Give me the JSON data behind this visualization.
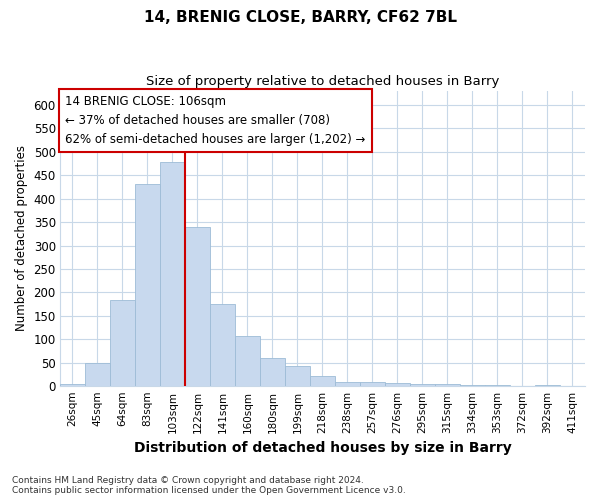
{
  "title": "14, BRENIG CLOSE, BARRY, CF62 7BL",
  "subtitle": "Size of property relative to detached houses in Barry",
  "xlabel": "Distribution of detached houses by size in Barry",
  "ylabel": "Number of detached properties",
  "bar_color": "#c8d9ee",
  "bar_edge_color": "#9dbcd6",
  "background_color": "#ffffff",
  "fig_background": "#ffffff",
  "grid_color": "#c8d8e8",
  "categories": [
    "26sqm",
    "45sqm",
    "64sqm",
    "83sqm",
    "103sqm",
    "122sqm",
    "141sqm",
    "160sqm",
    "180sqm",
    "199sqm",
    "218sqm",
    "238sqm",
    "257sqm",
    "276sqm",
    "295sqm",
    "315sqm",
    "334sqm",
    "353sqm",
    "372sqm",
    "392sqm",
    "411sqm"
  ],
  "values": [
    5,
    50,
    185,
    430,
    478,
    340,
    175,
    107,
    60,
    43,
    22,
    10,
    10,
    8,
    5,
    4,
    3,
    2,
    1,
    3,
    1
  ],
  "ylim": [
    0,
    630
  ],
  "yticks": [
    0,
    50,
    100,
    150,
    200,
    250,
    300,
    350,
    400,
    450,
    500,
    550,
    600
  ],
  "marker_bar_index": 4,
  "annotation_line1": "14 BRENIG CLOSE: 106sqm",
  "annotation_line2": "← 37% of detached houses are smaller (708)",
  "annotation_line3": "62% of semi-detached houses are larger (1,202) →",
  "annotation_box_color": "#ffffff",
  "annotation_box_edge": "#cc0000",
  "marker_line_color": "#cc0000",
  "footnote": "Contains HM Land Registry data © Crown copyright and database right 2024.\nContains public sector information licensed under the Open Government Licence v3.0."
}
